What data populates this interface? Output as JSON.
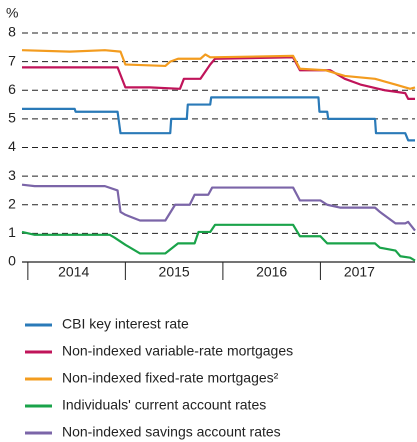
{
  "chart_data": {
    "type": "line",
    "y_label": "%",
    "xlim": [
      2013.94,
      2017.97
    ],
    "ylim": [
      0,
      8
    ],
    "yticks": [
      0,
      1,
      2,
      3,
      4,
      5,
      6,
      7,
      8
    ],
    "grid": true,
    "xticks": [
      {
        "value": 2014.47,
        "label": "2014"
      },
      {
        "value": 2015.5,
        "label": "2015"
      },
      {
        "value": 2016.5,
        "label": "2016"
      },
      {
        "value": 2017.4,
        "label": "2017"
      }
    ],
    "series": [
      {
        "name": "CBI key interest rate",
        "color": "#2a7ab8",
        "x": [
          2013.94,
          2014.48,
          2014.49,
          2014.92,
          2014.95,
          2015.46,
          2015.47,
          2015.63,
          2015.64,
          2015.87,
          2015.88,
          2016.98,
          2016.99,
          2017.07,
          2017.08,
          2017.56,
          2017.57,
          2017.87,
          2017.9,
          2017.97
        ],
        "values": [
          5.35,
          5.35,
          5.25,
          5.25,
          4.5,
          4.5,
          5.0,
          5.0,
          5.5,
          5.5,
          5.75,
          5.75,
          5.25,
          5.25,
          5.0,
          5.0,
          4.5,
          4.5,
          4.25,
          4.25
        ]
      },
      {
        "name": "Non-indexed variable-rate mortgages",
        "color": "#c0145a",
        "x": [
          2013.94,
          2014.92,
          2015.0,
          2015.25,
          2015.56,
          2015.6,
          2015.77,
          2015.87,
          2015.92,
          2016.72,
          2016.79,
          2017.1,
          2017.25,
          2017.41,
          2017.66,
          2017.87,
          2017.9,
          2017.97
        ],
        "values": [
          6.8,
          6.8,
          6.1,
          6.1,
          6.05,
          6.4,
          6.4,
          6.9,
          7.1,
          7.15,
          6.7,
          6.7,
          6.4,
          6.2,
          6.0,
          5.9,
          5.7,
          5.7
        ]
      },
      {
        "name": "Non-indexed fixed-rate mortgages²",
        "color": "#f39c1f",
        "x": [
          2013.94,
          2014.43,
          2014.79,
          2014.95,
          2015.0,
          2015.41,
          2015.46,
          2015.54,
          2015.77,
          2015.82,
          2015.87,
          2016.72,
          2016.79,
          2017.05,
          2017.25,
          2017.56,
          2017.77,
          2017.92,
          2017.97
        ],
        "values": [
          7.4,
          7.35,
          7.4,
          7.35,
          6.9,
          6.85,
          7.0,
          7.1,
          7.1,
          7.25,
          7.15,
          7.2,
          6.75,
          6.7,
          6.5,
          6.4,
          6.2,
          6.05,
          6.1
        ]
      },
      {
        "name": "Individuals' current account rates",
        "color": "#1aa34a",
        "x": [
          2013.94,
          2014.07,
          2014.84,
          2014.89,
          2015.0,
          2015.15,
          2015.41,
          2015.54,
          2015.71,
          2015.75,
          2015.87,
          2015.92,
          2016.72,
          2016.79,
          2017.0,
          2017.07,
          2017.56,
          2017.61,
          2017.77,
          2017.82,
          2017.92,
          2017.97
        ],
        "values": [
          1.05,
          0.95,
          0.95,
          0.85,
          0.6,
          0.3,
          0.3,
          0.65,
          0.65,
          1.05,
          1.05,
          1.3,
          1.3,
          0.9,
          0.9,
          0.65,
          0.65,
          0.5,
          0.4,
          0.2,
          0.15,
          0.05
        ]
      },
      {
        "name": "Non-indexed savings account rates",
        "color": "#7b65a8",
        "x": [
          2013.94,
          2014.07,
          2014.79,
          2014.92,
          2014.95,
          2015.0,
          2015.15,
          2015.41,
          2015.51,
          2015.66,
          2015.71,
          2015.85,
          2015.89,
          2016.72,
          2016.79,
          2017.0,
          2017.07,
          2017.2,
          2017.56,
          2017.61,
          2017.77,
          2017.87,
          2017.9,
          2017.97
        ],
        "values": [
          2.7,
          2.65,
          2.65,
          2.5,
          1.75,
          1.65,
          1.45,
          1.45,
          2.0,
          2.0,
          2.35,
          2.35,
          2.6,
          2.6,
          2.15,
          2.15,
          2.0,
          1.9,
          1.9,
          1.75,
          1.35,
          1.35,
          1.4,
          1.1
        ]
      }
    ]
  }
}
